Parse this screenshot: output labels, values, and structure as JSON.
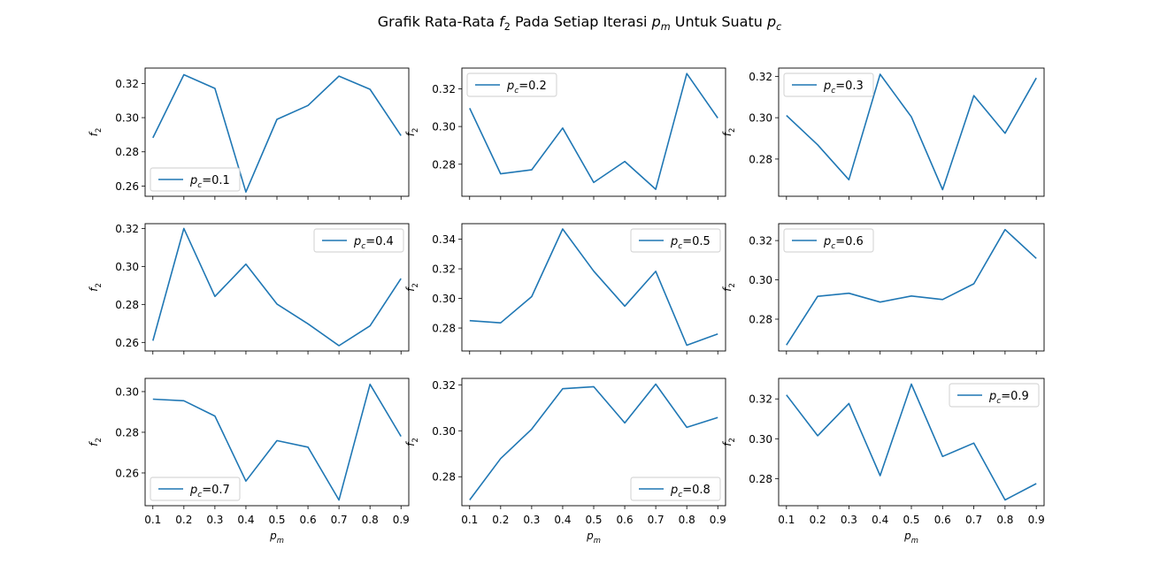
{
  "figure": {
    "title_parts": [
      {
        "t": "Grafik Rata-Rata ",
        "style": "normal"
      },
      {
        "t": "f",
        "style": "italic"
      },
      {
        "t": "2",
        "style": "sub"
      },
      {
        "t": " Pada Setiap Iterasi ",
        "style": "normal"
      },
      {
        "t": "p",
        "style": "italic"
      },
      {
        "t": "m",
        "style": "subitalic"
      },
      {
        "t": " Untuk Suatu ",
        "style": "normal"
      },
      {
        "t": "p",
        "style": "italic"
      },
      {
        "t": "c",
        "style": "subitalic"
      }
    ],
    "line_color": "#1f77b4"
  },
  "chart_data": [
    {
      "type": "line",
      "x": [
        0.1,
        0.2,
        0.3,
        0.4,
        0.5,
        0.6,
        0.7,
        0.8,
        0.9
      ],
      "values": [
        0.2882,
        0.3251,
        0.3171,
        0.2565,
        0.299,
        0.3071,
        0.3243,
        0.3166,
        0.2895
      ],
      "legend_text": "=0.1",
      "legend_loc": "lower-left",
      "ylim": [
        0.254,
        0.329
      ],
      "yticks": [
        0.26,
        0.28,
        0.3,
        0.32
      ],
      "ytick_labels": [
        "0.26",
        "0.28",
        "0.30",
        "0.32"
      ],
      "ylabel": "f2",
      "xlabel": ""
    },
    {
      "type": "line",
      "x": [
        0.1,
        0.2,
        0.3,
        0.4,
        0.5,
        0.6,
        0.7,
        0.8,
        0.9
      ],
      "values": [
        0.3097,
        0.2749,
        0.277,
        0.2992,
        0.2703,
        0.2815,
        0.2667,
        0.3281,
        0.3045
      ],
      "legend_text": "=0.2",
      "legend_loc": "upper-left",
      "ylim": [
        0.263,
        0.331
      ],
      "yticks": [
        0.28,
        0.3,
        0.32
      ],
      "ytick_labels": [
        "0.28",
        "0.30",
        "0.32"
      ],
      "ylabel": "f2",
      "xlabel": ""
    },
    {
      "type": "line",
      "x": [
        0.1,
        0.2,
        0.3,
        0.4,
        0.5,
        0.6,
        0.7,
        0.8,
        0.9
      ],
      "values": [
        0.3011,
        0.2869,
        0.27,
        0.321,
        0.3004,
        0.2652,
        0.3107,
        0.2925,
        0.3192
      ],
      "legend_text": "=0.3",
      "legend_loc": "upper-left",
      "ylim": [
        0.262,
        0.324
      ],
      "yticks": [
        0.28,
        0.3,
        0.32
      ],
      "ytick_labels": [
        "0.28",
        "0.30",
        "0.32"
      ],
      "ylabel": "f2",
      "xlabel": ""
    },
    {
      "type": "line",
      "x": [
        0.1,
        0.2,
        0.3,
        0.4,
        0.5,
        0.6,
        0.7,
        0.8,
        0.9
      ],
      "values": [
        0.2609,
        0.32,
        0.2842,
        0.3012,
        0.2802,
        0.2698,
        0.2583,
        0.2687,
        0.2936
      ],
      "legend_text": "=0.4",
      "legend_loc": "upper-right",
      "ylim": [
        0.2555,
        0.3225
      ],
      "yticks": [
        0.26,
        0.28,
        0.3,
        0.32
      ],
      "ytick_labels": [
        "0.26",
        "0.28",
        "0.30",
        "0.32"
      ],
      "ylabel": "f2",
      "xlabel": ""
    },
    {
      "type": "line",
      "x": [
        0.1,
        0.2,
        0.3,
        0.4,
        0.5,
        0.6,
        0.7,
        0.8,
        0.9
      ],
      "values": [
        0.285,
        0.2835,
        0.3012,
        0.3469,
        0.3184,
        0.2948,
        0.3183,
        0.2684,
        0.276
      ],
      "legend_text": "=0.5",
      "legend_loc": "upper-right",
      "ylim": [
        0.2645,
        0.3505
      ],
      "yticks": [
        0.28,
        0.3,
        0.32,
        0.34
      ],
      "ytick_labels": [
        "0.28",
        "0.30",
        "0.32",
        "0.34"
      ],
      "ylabel": "f2",
      "xlabel": ""
    },
    {
      "type": "line",
      "x": [
        0.1,
        0.2,
        0.3,
        0.4,
        0.5,
        0.6,
        0.7,
        0.8,
        0.9
      ],
      "values": [
        0.2668,
        0.2916,
        0.2932,
        0.2887,
        0.2918,
        0.29,
        0.298,
        0.3256,
        0.3109
      ],
      "legend_text": "=0.6",
      "legend_loc": "upper-left",
      "ylim": [
        0.2638,
        0.3286
      ],
      "yticks": [
        0.28,
        0.3,
        0.32
      ],
      "ytick_labels": [
        "0.28",
        "0.30",
        "0.32"
      ],
      "ylabel": "f2",
      "xlabel": ""
    },
    {
      "type": "line",
      "x": [
        0.1,
        0.2,
        0.3,
        0.4,
        0.5,
        0.6,
        0.7,
        0.8,
        0.9
      ],
      "values": [
        0.2963,
        0.2955,
        0.288,
        0.256,
        0.2759,
        0.2727,
        0.2467,
        0.3036,
        0.278
      ],
      "legend_text": "=0.7",
      "legend_loc": "lower-left",
      "ylim": [
        0.2439,
        0.3065
      ],
      "yticks": [
        0.26,
        0.28,
        0.3
      ],
      "ytick_labels": [
        "0.26",
        "0.28",
        "0.30"
      ],
      "ylabel": "f2",
      "xlabel": "pm"
    },
    {
      "type": "line",
      "x": [
        0.1,
        0.2,
        0.3,
        0.4,
        0.5,
        0.6,
        0.7,
        0.8,
        0.9
      ],
      "values": [
        0.2699,
        0.2879,
        0.3007,
        0.3183,
        0.3192,
        0.3034,
        0.3203,
        0.3015,
        0.3058
      ],
      "legend_text": "=0.8",
      "legend_loc": "lower-right",
      "ylim": [
        0.2674,
        0.3228
      ],
      "yticks": [
        0.28,
        0.3,
        0.32
      ],
      "ytick_labels": [
        "0.28",
        "0.30",
        "0.32"
      ],
      "ylabel": "f2",
      "xlabel": "pm"
    },
    {
      "type": "line",
      "x": [
        0.1,
        0.2,
        0.3,
        0.4,
        0.5,
        0.6,
        0.7,
        0.8,
        0.9
      ],
      "values": [
        0.322,
        0.3015,
        0.3177,
        0.2815,
        0.3274,
        0.2911,
        0.2978,
        0.2693,
        0.2775
      ],
      "legend_text": "=0.9",
      "legend_loc": "upper-right",
      "ylim": [
        0.2664,
        0.3303
      ],
      "yticks": [
        0.28,
        0.3,
        0.32
      ],
      "ytick_labels": [
        "0.28",
        "0.30",
        "0.32"
      ],
      "ylabel": "f2",
      "xlabel": "pm"
    }
  ],
  "xaxis": {
    "xlim": [
      0.075,
      0.925
    ],
    "ticks": [
      0.1,
      0.2,
      0.3,
      0.4,
      0.5,
      0.6,
      0.7,
      0.8,
      0.9
    ],
    "tick_labels": [
      "0.1",
      "0.2",
      "0.3",
      "0.4",
      "0.5",
      "0.6",
      "0.7",
      "0.8",
      "0.9"
    ]
  }
}
